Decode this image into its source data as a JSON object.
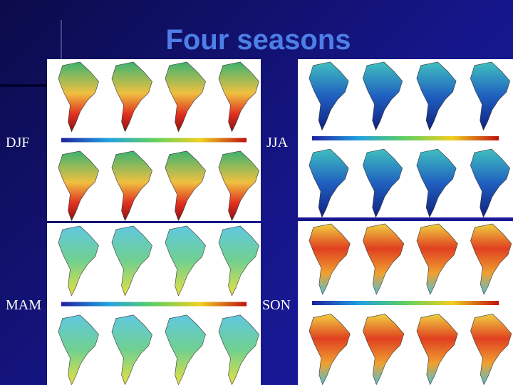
{
  "header": {
    "title": "Four seasons"
  },
  "panels": [
    {
      "label": "DJF"
    },
    {
      "label": "JJA"
    },
    {
      "label": "MAM"
    },
    {
      "label": "SON"
    }
  ]
}
